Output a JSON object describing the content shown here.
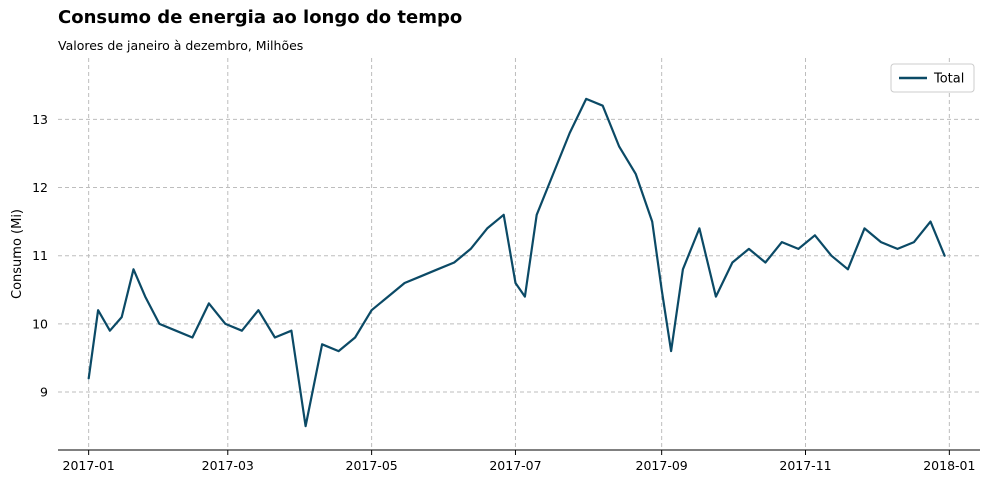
{
  "chart_data": {
    "type": "line",
    "title": "Consumo de energia ao longo do tempo",
    "subtitle": "Valores de janeiro à dezembro, Milhões",
    "xlabel": "",
    "ylabel": "Consumo (Mi)",
    "x_ticks": [
      "2017-01",
      "2017-03",
      "2017-05",
      "2017-07",
      "2017-09",
      "2017-11",
      "2018-01"
    ],
    "x_tick_dates": [
      "2017-01-01",
      "2017-03-01",
      "2017-05-01",
      "2017-07-01",
      "2017-09-01",
      "2017-11-01",
      "2018-01-01"
    ],
    "y_ticks": [
      9,
      10,
      11,
      12,
      13
    ],
    "xlim": [
      "2016-12-19",
      "2018-01-14"
    ],
    "ylim": [
      8.15,
      13.9
    ],
    "grid": true,
    "legend_position": "top-right",
    "color": "#0b4a66",
    "series": [
      {
        "name": "Total",
        "x": [
          "2017-01-01",
          "2017-01-05",
          "2017-01-10",
          "2017-01-15",
          "2017-01-20",
          "2017-01-25",
          "2017-01-31",
          "2017-02-07",
          "2017-02-14",
          "2017-02-21",
          "2017-02-28",
          "2017-03-07",
          "2017-03-14",
          "2017-03-21",
          "2017-03-28",
          "2017-04-03",
          "2017-04-10",
          "2017-04-17",
          "2017-04-24",
          "2017-05-01",
          "2017-05-08",
          "2017-05-15",
          "2017-05-22",
          "2017-05-29",
          "2017-06-05",
          "2017-06-12",
          "2017-06-19",
          "2017-06-26",
          "2017-07-01",
          "2017-07-05",
          "2017-07-10",
          "2017-07-17",
          "2017-07-24",
          "2017-07-31",
          "2017-08-07",
          "2017-08-14",
          "2017-08-21",
          "2017-08-28",
          "2017-09-01",
          "2017-09-05",
          "2017-09-10",
          "2017-09-17",
          "2017-09-24",
          "2017-10-01",
          "2017-10-08",
          "2017-10-15",
          "2017-10-22",
          "2017-10-29",
          "2017-11-05",
          "2017-11-12",
          "2017-11-19",
          "2017-11-26",
          "2017-12-03",
          "2017-12-10",
          "2017-12-17",
          "2017-12-24",
          "2017-12-30"
        ],
        "values": [
          9.2,
          10.2,
          9.9,
          10.1,
          10.8,
          10.4,
          10.0,
          9.9,
          9.8,
          10.3,
          10.0,
          9.9,
          10.2,
          9.8,
          9.9,
          8.5,
          9.7,
          9.6,
          9.8,
          10.2,
          10.4,
          10.6,
          10.7,
          10.8,
          10.9,
          11.1,
          11.4,
          11.6,
          10.6,
          10.4,
          11.6,
          12.2,
          12.8,
          13.3,
          13.2,
          12.6,
          12.2,
          11.5,
          10.5,
          9.6,
          10.8,
          11.4,
          10.4,
          10.9,
          11.1,
          10.9,
          11.2,
          11.1,
          11.3,
          11.0,
          10.8,
          11.4,
          11.2,
          11.1,
          11.2,
          11.5,
          11.0
        ]
      }
    ]
  }
}
